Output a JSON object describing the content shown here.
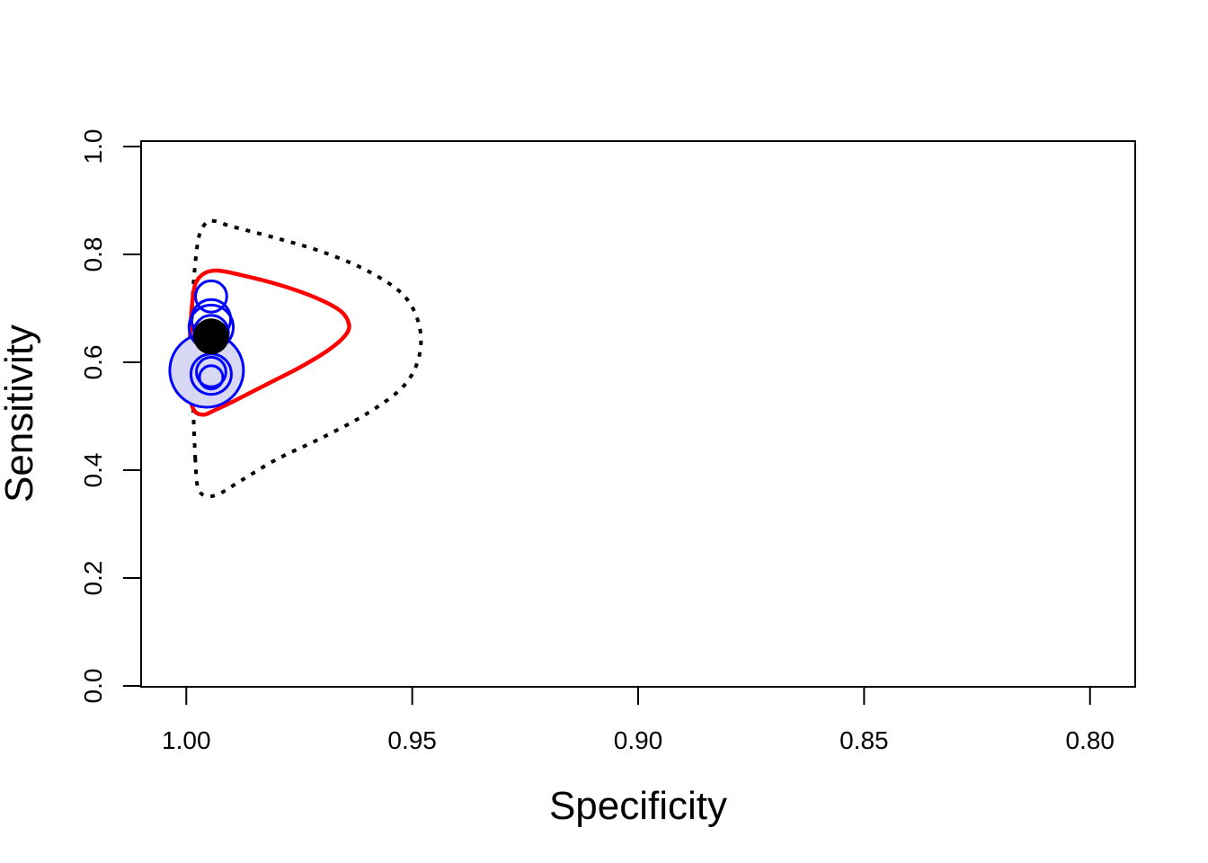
{
  "chart_data": {
    "type": "scatter",
    "title": "",
    "xlabel": "Specificity",
    "ylabel": "Sensitivity",
    "xlim": [
      1.01,
      0.79
    ],
    "ylim": [
      0.0,
      1.0
    ],
    "x_ticks": [
      1.0,
      0.95,
      0.9,
      0.85,
      0.8
    ],
    "x_tick_labels": [
      "1.00",
      "0.95",
      "0.90",
      "0.85",
      "0.80"
    ],
    "y_ticks": [
      0.0,
      0.2,
      0.4,
      0.6,
      0.8,
      1.0
    ],
    "y_tick_labels": [
      "0.0",
      "0.2",
      "0.4",
      "0.6",
      "0.8",
      "1.0"
    ],
    "grid": false,
    "legend": "none",
    "colors": {
      "study_points": "#0000ff",
      "study_fill": "#d8d8f5",
      "summary_point": "#000000",
      "confidence_region": "#ff0000",
      "prediction_region": "#000000"
    },
    "studies": [
      {
        "specificity": 0.9955,
        "sensitivity": 0.585,
        "weight": 1.0
      },
      {
        "specificity": 0.9945,
        "sensitivity": 0.722,
        "weight": 0.18
      },
      {
        "specificity": 0.9945,
        "sensitivity": 0.68,
        "weight": 0.28
      },
      {
        "specificity": 0.9945,
        "sensitivity": 0.665,
        "weight": 0.36
      },
      {
        "specificity": 0.9945,
        "sensitivity": 0.655,
        "weight": 0.22
      },
      {
        "specificity": 0.9945,
        "sensitivity": 0.578,
        "weight": 0.3
      },
      {
        "specificity": 0.9945,
        "sensitivity": 0.572,
        "weight": 0.1
      },
      {
        "specificity": 0.9945,
        "sensitivity": 0.582,
        "weight": 0.16
      }
    ],
    "summary_point": {
      "specificity": 0.9945,
      "sensitivity": 0.648
    },
    "confidence_region": [
      [
        0.999,
        0.57
      ],
      [
        0.9992,
        0.64
      ],
      [
        0.9988,
        0.7
      ],
      [
        0.998,
        0.745
      ],
      [
        0.996,
        0.765
      ],
      [
        0.993,
        0.77
      ],
      [
        0.988,
        0.762
      ],
      [
        0.98,
        0.745
      ],
      [
        0.972,
        0.722
      ],
      [
        0.966,
        0.696
      ],
      [
        0.964,
        0.67
      ],
      [
        0.965,
        0.648
      ],
      [
        0.969,
        0.62
      ],
      [
        0.975,
        0.59
      ],
      [
        0.982,
        0.56
      ],
      [
        0.989,
        0.53
      ],
      [
        0.994,
        0.51
      ],
      [
        0.996,
        0.503
      ],
      [
        0.998,
        0.508
      ],
      [
        0.999,
        0.53
      ]
    ],
    "prediction_region": [
      [
        0.998,
        0.42
      ],
      [
        0.9985,
        0.52
      ],
      [
        0.9988,
        0.62
      ],
      [
        0.9986,
        0.72
      ],
      [
        0.9975,
        0.82
      ],
      [
        0.996,
        0.855
      ],
      [
        0.994,
        0.862
      ],
      [
        0.99,
        0.852
      ],
      [
        0.98,
        0.83
      ],
      [
        0.97,
        0.805
      ],
      [
        0.96,
        0.77
      ],
      [
        0.952,
        0.725
      ],
      [
        0.9485,
        0.67
      ],
      [
        0.9485,
        0.61
      ],
      [
        0.952,
        0.555
      ],
      [
        0.96,
        0.505
      ],
      [
        0.97,
        0.46
      ],
      [
        0.98,
        0.42
      ],
      [
        0.988,
        0.38
      ],
      [
        0.993,
        0.355
      ],
      [
        0.996,
        0.353
      ],
      [
        0.9975,
        0.37
      ]
    ]
  }
}
